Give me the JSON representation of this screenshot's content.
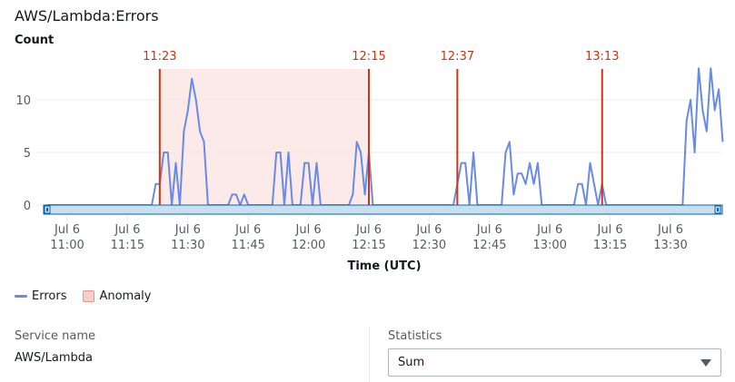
{
  "header": {
    "title": "AWS/Lambda:Errors",
    "unit_label": "Count"
  },
  "colors": {
    "series": "#688ae8",
    "anomaly_fill": "#fbeae7",
    "anomaly_line": "#d13212",
    "gridline": "#e9ebed",
    "scrollbar_fill": "#c8dfef",
    "scrollbar_border": "#0a64ad"
  },
  "chart_data": {
    "type": "line",
    "title": "AWS/Lambda:Errors",
    "xlabel": "Time (UTC)",
    "ylabel": "Count",
    "ylim": [
      0,
      13
    ],
    "yticks": [
      0,
      5,
      10
    ],
    "grid": true,
    "legend_position": "bottom-left",
    "x_ticks": [
      {
        "date": "Jul 6",
        "time": "11:00"
      },
      {
        "date": "Jul 6",
        "time": "11:15"
      },
      {
        "date": "Jul 6",
        "time": "11:30"
      },
      {
        "date": "Jul 6",
        "time": "11:45"
      },
      {
        "date": "Jul 6",
        "time": "12:00"
      },
      {
        "date": "Jul 6",
        "time": "12:15"
      },
      {
        "date": "Jul 6",
        "time": "12:30"
      },
      {
        "date": "Jul 6",
        "time": "12:45"
      },
      {
        "date": "Jul 6",
        "time": "13:00"
      },
      {
        "date": "Jul 6",
        "time": "13:15"
      },
      {
        "date": "Jul 6",
        "time": "13:30"
      }
    ],
    "legend": [
      "Errors",
      "Anomaly"
    ],
    "anomaly_region": {
      "start": "11:23",
      "end": "12:15"
    },
    "anomaly_markers": [
      "11:23",
      "12:15",
      "12:37",
      "13:13"
    ],
    "series": [
      {
        "name": "Errors",
        "points": [
          [
            "10:55",
            0
          ],
          [
            "11:21",
            0
          ],
          [
            "11:22",
            2
          ],
          [
            "11:23",
            2
          ],
          [
            "11:24",
            5
          ],
          [
            "11:25",
            5
          ],
          [
            "11:26",
            0
          ],
          [
            "11:27",
            4
          ],
          [
            "11:28",
            0
          ],
          [
            "11:29",
            7
          ],
          [
            "11:30",
            9
          ],
          [
            "11:31",
            12
          ],
          [
            "11:32",
            10
          ],
          [
            "11:33",
            7
          ],
          [
            "11:34",
            6
          ],
          [
            "11:35",
            0
          ],
          [
            "11:40",
            0
          ],
          [
            "11:41",
            1
          ],
          [
            "11:42",
            1
          ],
          [
            "11:43",
            0
          ],
          [
            "11:44",
            1
          ],
          [
            "11:45",
            0
          ],
          [
            "11:51",
            0
          ],
          [
            "11:52",
            5
          ],
          [
            "11:53",
            5
          ],
          [
            "11:54",
            0
          ],
          [
            "11:55",
            5
          ],
          [
            "11:56",
            0
          ],
          [
            "11:58",
            0
          ],
          [
            "11:59",
            4
          ],
          [
            "12:00",
            4
          ],
          [
            "12:01",
            0
          ],
          [
            "12:02",
            4
          ],
          [
            "12:03",
            0
          ],
          [
            "12:10",
            0
          ],
          [
            "12:11",
            1
          ],
          [
            "12:12",
            6
          ],
          [
            "12:13",
            5
          ],
          [
            "12:14",
            1
          ],
          [
            "12:15",
            5
          ],
          [
            "12:16",
            0
          ],
          [
            "12:36",
            0
          ],
          [
            "12:37",
            2
          ],
          [
            "12:38",
            4
          ],
          [
            "12:39",
            4
          ],
          [
            "12:40",
            0
          ],
          [
            "12:41",
            5
          ],
          [
            "12:42",
            0
          ],
          [
            "12:48",
            0
          ],
          [
            "12:49",
            5
          ],
          [
            "12:50",
            6
          ],
          [
            "12:51",
            1
          ],
          [
            "12:52",
            3
          ],
          [
            "12:53",
            3
          ],
          [
            "12:54",
            2
          ],
          [
            "12:55",
            4
          ],
          [
            "12:56",
            2
          ],
          [
            "12:57",
            4
          ],
          [
            "12:58",
            0
          ],
          [
            "13:06",
            0
          ],
          [
            "13:07",
            2
          ],
          [
            "13:08",
            2
          ],
          [
            "13:09",
            0
          ],
          [
            "13:10",
            4
          ],
          [
            "13:11",
            2
          ],
          [
            "13:12",
            0
          ],
          [
            "13:13",
            2
          ],
          [
            "13:14",
            0
          ],
          [
            "13:33",
            0
          ],
          [
            "13:34",
            8
          ],
          [
            "13:35",
            10
          ],
          [
            "13:36",
            5
          ],
          [
            "13:37",
            13
          ],
          [
            "13:38",
            9
          ],
          [
            "13:39",
            7
          ],
          [
            "13:40",
            13
          ],
          [
            "13:41",
            9
          ],
          [
            "13:42",
            11
          ],
          [
            "13:43",
            6
          ]
        ]
      }
    ]
  },
  "legend": {
    "errors_label": "Errors",
    "anomaly_label": "Anomaly"
  },
  "details": {
    "service_name_label": "Service name",
    "service_name_value": "AWS/Lambda",
    "statistics_label": "Statistics",
    "statistics_value": "Sum"
  }
}
